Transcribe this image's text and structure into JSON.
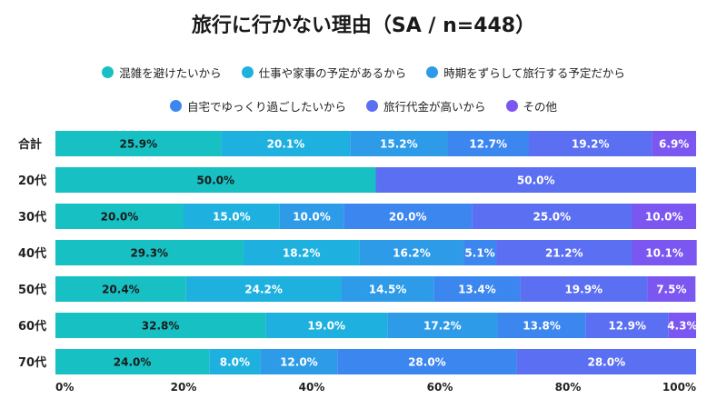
{
  "chart_data": {
    "type": "bar",
    "orientation": "horizontal",
    "stacked": true,
    "title": "旅行に行かない理由（SA / n=448）",
    "categories": [
      "合計",
      "20代",
      "30代",
      "40代",
      "50代",
      "60代",
      "70代"
    ],
    "series": [
      {
        "name": "混雑を避けたいから",
        "color": "#17c1c3",
        "values": [
          25.9,
          50.0,
          20.0,
          29.3,
          20.4,
          32.8,
          24.0
        ],
        "labels": [
          "25.9%",
          "50.0%",
          "20.0%",
          "29.3%",
          "20.4%",
          "32.8%",
          "24.0%"
        ]
      },
      {
        "name": "仕事や家事の予定があるから",
        "color": "#1eb1e0",
        "values": [
          20.1,
          0,
          15.0,
          18.2,
          24.2,
          19.0,
          8.0
        ],
        "labels": [
          "20.1%",
          "",
          "15.0%",
          "18.2%",
          "24.2%",
          "19.0%",
          "8.0%"
        ]
      },
      {
        "name": "時期をずらして旅行する予定だから",
        "color": "#2e9be8",
        "values": [
          15.2,
          0,
          10.0,
          16.2,
          14.5,
          17.2,
          12.0
        ],
        "labels": [
          "15.2%",
          "",
          "10.0%",
          "16.2%",
          "14.5%",
          "17.2%",
          "12.0%"
        ]
      },
      {
        "name": "自宅でゆっくり過ごしたいから",
        "color": "#3b86ef",
        "values": [
          12.7,
          0,
          20.0,
          5.1,
          13.4,
          13.8,
          28.0
        ],
        "labels": [
          "12.7%",
          "",
          "20.0%",
          "5.1%",
          "13.4%",
          "13.8%",
          "28.0%"
        ]
      },
      {
        "name": "旅行代金が高いから",
        "color": "#5a6ff1",
        "values": [
          19.2,
          50.0,
          25.0,
          21.2,
          19.9,
          12.9,
          28.0
        ],
        "labels": [
          "19.2%",
          "50.0%",
          "25.0%",
          "21.2%",
          "19.9%",
          "12.9%",
          "28.0%"
        ]
      },
      {
        "name": "その他",
        "color": "#7b56f0",
        "values": [
          6.9,
          0,
          10.0,
          10.1,
          7.5,
          4.3,
          0
        ],
        "labels": [
          "6.9%",
          "",
          "10.0%",
          "10.1%",
          "7.5%",
          "4.3%",
          ""
        ]
      }
    ],
    "x_ticks": [
      "0%",
      "20%",
      "40%",
      "60%",
      "80%",
      "100%"
    ],
    "xlim": [
      0,
      100
    ],
    "grid": false,
    "legend_position": "top"
  }
}
